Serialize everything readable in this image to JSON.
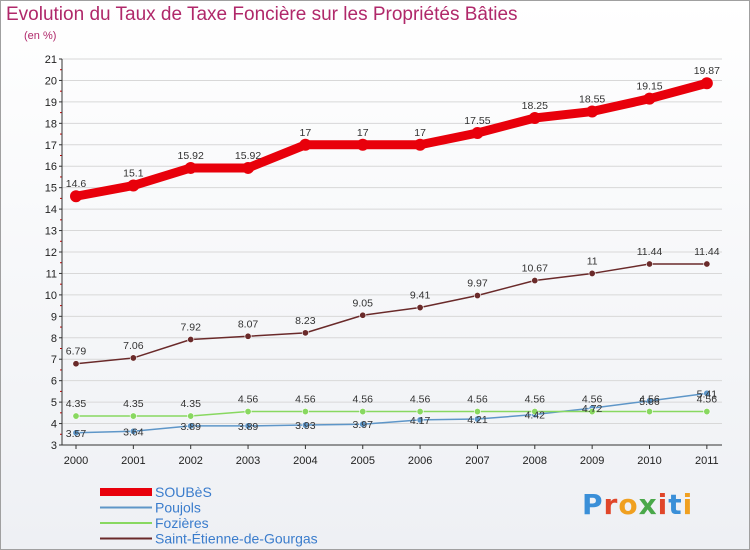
{
  "title": "Evolution du Taux de Taxe Foncière sur les Propriétés Bâties",
  "unit_label": "(en %)",
  "logo": {
    "text": "Proxiti",
    "colors": [
      "#3a8fd8",
      "#e0462a",
      "#f0a020",
      "#4aa84a",
      "#e0462a",
      "#3a8fd8",
      "#f0a020"
    ]
  },
  "chart_data": {
    "type": "line",
    "title": "Evolution du Taux de Taxe Foncière sur les Propriétés Bâties",
    "ylabel": "(en %)",
    "xlabel": "",
    "x": [
      "2000",
      "2001",
      "2002",
      "2003",
      "2004",
      "2005",
      "2006",
      "2007",
      "2008",
      "2009",
      "2010",
      "2011"
    ],
    "ylim": [
      3,
      21
    ],
    "yticks": [
      3,
      4,
      5,
      6,
      7,
      8,
      9,
      10,
      11,
      12,
      13,
      14,
      15,
      16,
      17,
      18,
      19,
      20,
      21
    ],
    "legend_position": "bottom-left",
    "series": [
      {
        "name": "SOUBèS",
        "color": "#e8000b",
        "emphasis": true,
        "values": [
          14.6,
          15.1,
          15.92,
          15.92,
          17,
          17,
          17,
          17.55,
          18.25,
          18.55,
          19.15,
          19.87
        ],
        "labels": [
          "14.6",
          "15.1",
          "15.92",
          "15.92",
          "17",
          "17",
          "17",
          "17.55",
          "18.25",
          "18.55",
          "19.15",
          "19.87"
        ]
      },
      {
        "name": "Poujols",
        "color": "#5e96c8",
        "emphasis": false,
        "values": [
          3.57,
          3.64,
          3.89,
          3.89,
          3.93,
          3.97,
          4.17,
          4.21,
          4.42,
          4.72,
          5.06,
          5.41
        ],
        "labels": [
          "3.57",
          "3.64",
          "3.89",
          "3.89",
          "3.93",
          "3.97",
          "4.17",
          "4.21",
          "4.42",
          "4.72",
          "5.06",
          "5.41"
        ]
      },
      {
        "name": "Fozières",
        "color": "#88d860",
        "emphasis": false,
        "values": [
          4.35,
          4.35,
          4.35,
          4.56,
          4.56,
          4.56,
          4.56,
          4.56,
          4.56,
          4.56,
          4.56,
          4.56
        ],
        "labels": [
          "4.35",
          "4.35",
          "4.35",
          "4.56",
          "4.56",
          "4.56",
          "4.56",
          "4.56",
          "4.56",
          "4.56",
          "4.56",
          "4.56"
        ]
      },
      {
        "name": "Saint-Étienne-de-Gourgas",
        "color": "#6a2a2a",
        "emphasis": false,
        "values": [
          6.79,
          7.06,
          7.92,
          8.07,
          8.23,
          9.05,
          9.41,
          9.97,
          10.67,
          11,
          11.44,
          11.44
        ],
        "labels": [
          "6.79",
          "7.06",
          "7.92",
          "8.07",
          "8.23",
          "9.05",
          "9.41",
          "9.97",
          "10.67",
          "11",
          "11.44",
          "11.44"
        ]
      }
    ]
  }
}
